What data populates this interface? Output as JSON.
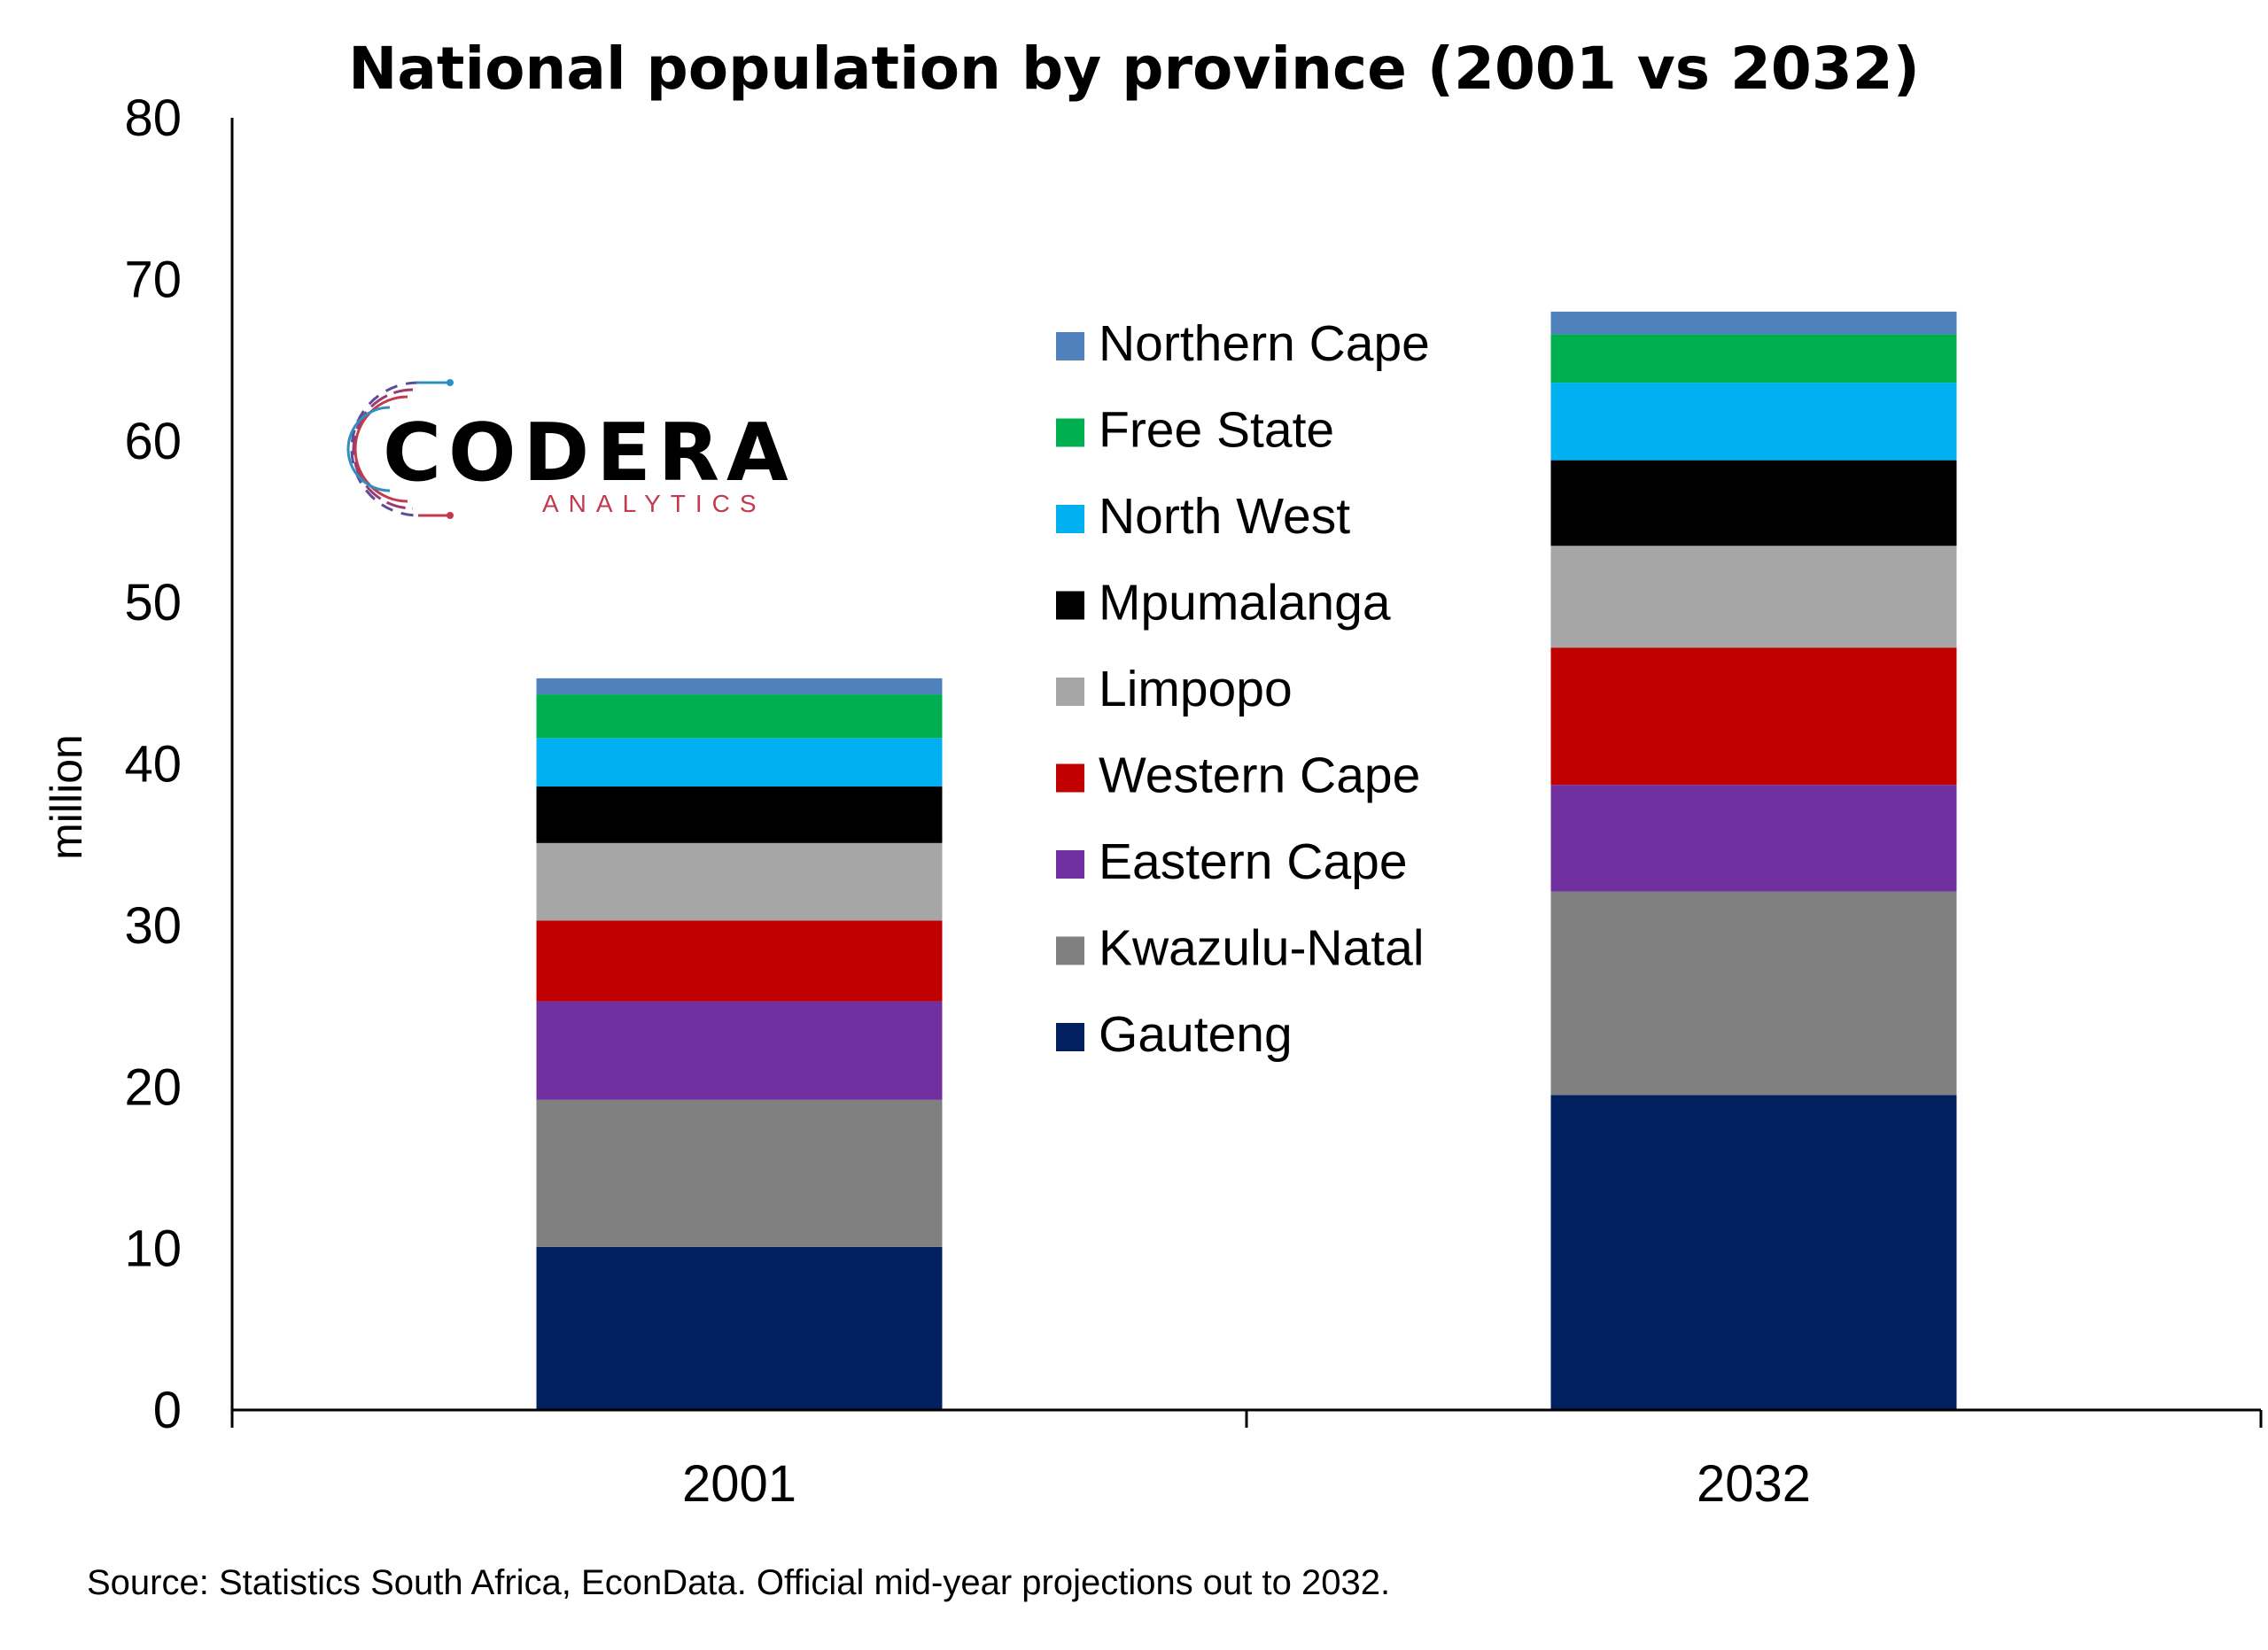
{
  "chart_data": {
    "type": "bar",
    "stacked": true,
    "title": "National population by province (2001 vs 2032)",
    "ylabel": "million",
    "xlabel": "",
    "categories": [
      "2001",
      "2032"
    ],
    "ylim": [
      0,
      80
    ],
    "yticks": [
      0,
      10,
      20,
      30,
      40,
      50,
      60,
      70,
      80
    ],
    "grid": false,
    "legend_position": "center",
    "series": [
      {
        "name": "Gauteng",
        "color": "#002060",
        "values": [
          10.1,
          19.5
        ]
      },
      {
        "name": "Kwazulu-Natal",
        "color": "#808080",
        "values": [
          9.1,
          12.6
        ]
      },
      {
        "name": "Eastern Cape",
        "color": "#7030A0",
        "values": [
          6.1,
          6.6
        ]
      },
      {
        "name": "Western Cape",
        "color": "#C00000",
        "values": [
          5.0,
          8.5
        ]
      },
      {
        "name": "Limpopo",
        "color": "#A6A6A6",
        "values": [
          4.8,
          6.3
        ]
      },
      {
        "name": "Mpumalanga",
        "color": "#000000",
        "values": [
          3.5,
          5.3
        ]
      },
      {
        "name": "North West",
        "color": "#00B0F0",
        "values": [
          3.0,
          4.8
        ]
      },
      {
        "name": "Free State",
        "color": "#00B050",
        "values": [
          2.7,
          3.0
        ]
      },
      {
        "name": "Northern Cape",
        "color": "#4F81BD",
        "values": [
          1.0,
          1.4
        ]
      }
    ]
  },
  "logo": {
    "name": "CODERA",
    "subtitle": "ANALYTICS"
  },
  "source": "Source: Statistics South Africa, EconData. Official mid-year projections out to 2032."
}
